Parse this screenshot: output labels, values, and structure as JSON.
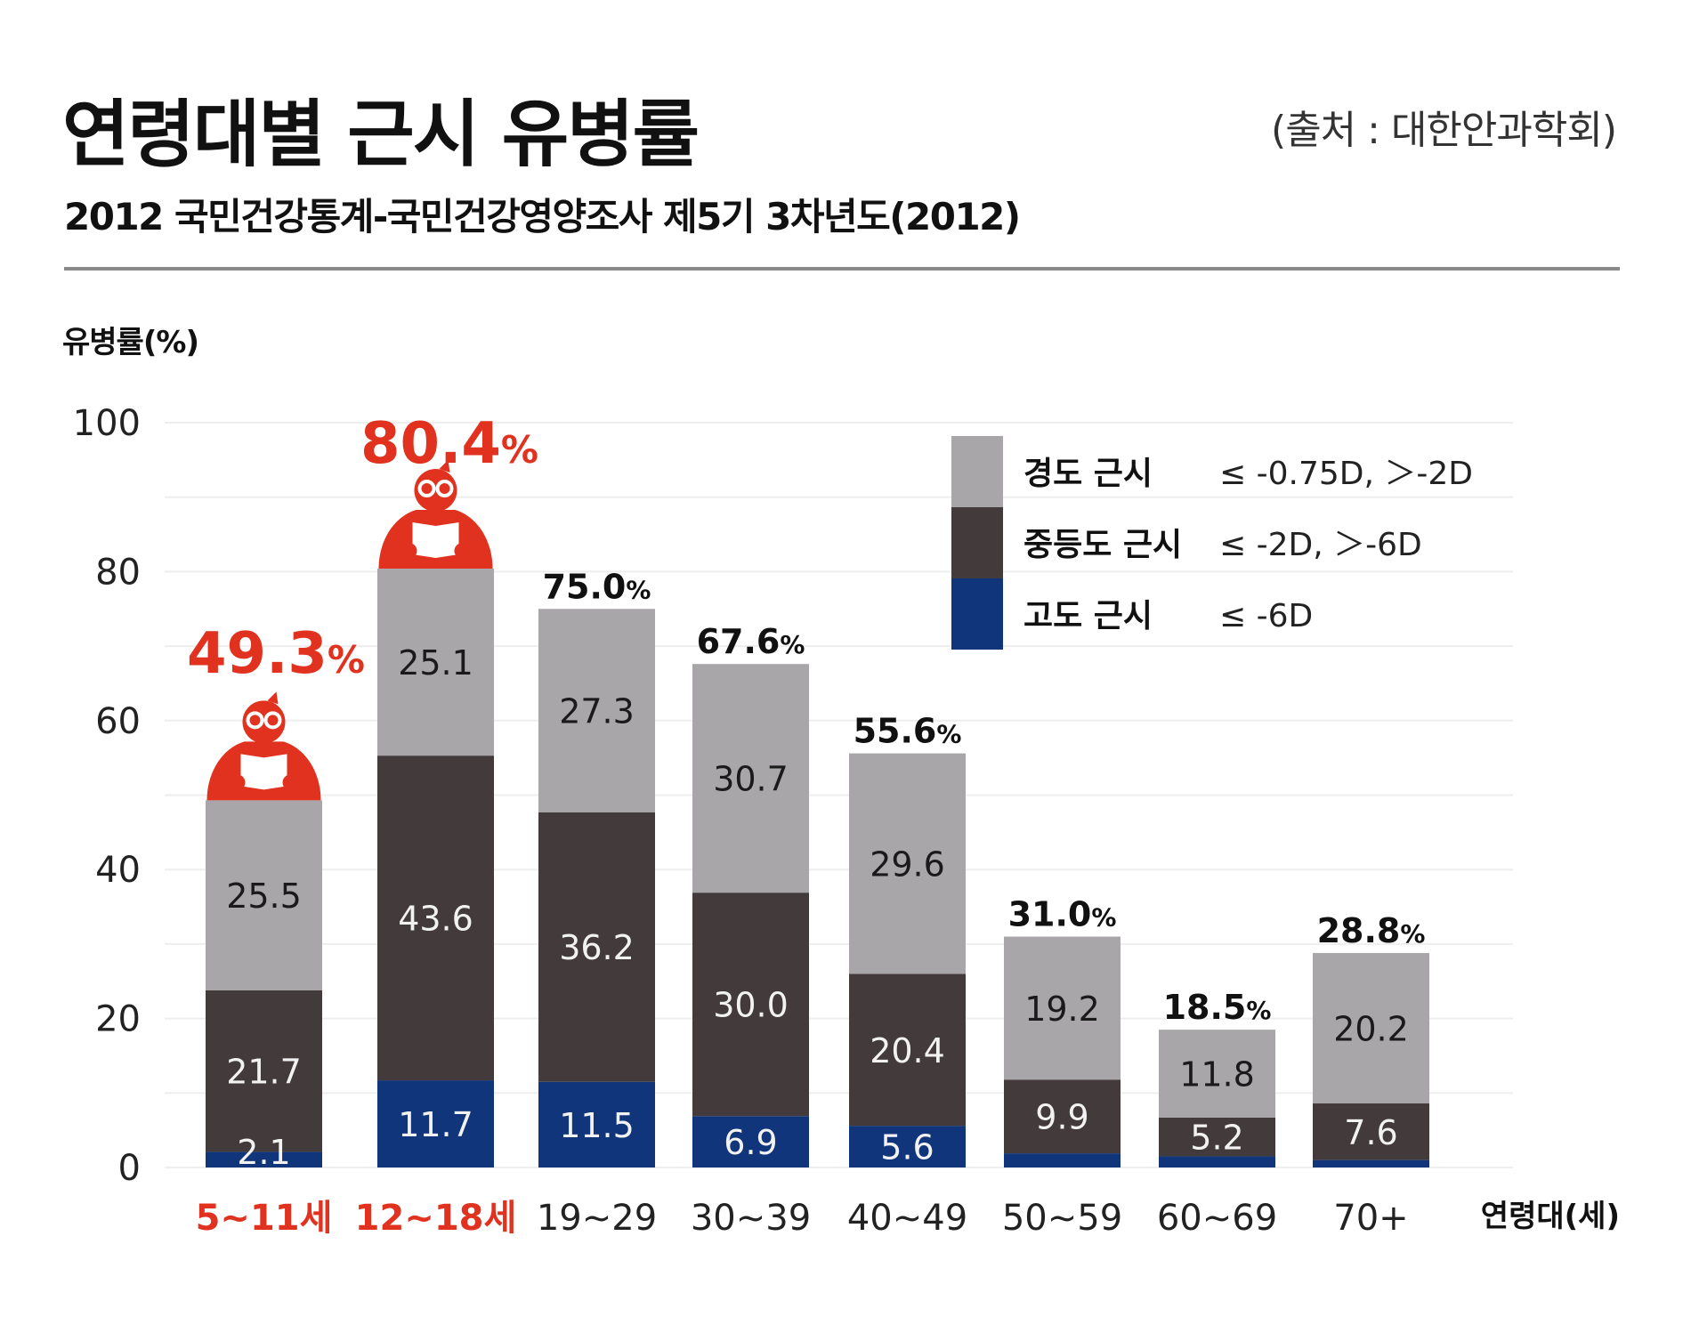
{
  "header": {
    "title": "연령대별 근시 유병률",
    "source": "(출처 : 대한안과학회)",
    "subtitle": "2012 국민건강통계-국민건강영양조사 제5기 3차년도(2012)"
  },
  "chart_data": {
    "type": "bar",
    "stacked": true,
    "title": "연령대별 근시 유병률",
    "ylabel": "유병률(%)",
    "xlabel": "연령대(세)",
    "ylim": [
      0,
      100
    ],
    "yticks": [
      "0",
      "20",
      "40",
      "60",
      "80",
      "100"
    ],
    "grid": true,
    "legend_position": "top-right",
    "categories": [
      "5~11세",
      "12~18세",
      "19~29",
      "30~39",
      "40~49",
      "50~59",
      "60~69",
      "70+"
    ],
    "highlight_categories": [
      "5~11세",
      "12~18세"
    ],
    "totals": [
      49.3,
      80.4,
      75.0,
      67.6,
      55.6,
      31.0,
      18.5,
      28.8
    ],
    "total_labels": [
      "49.3",
      "80.4",
      "75.0",
      "67.6",
      "55.6",
      "31.0",
      "18.5",
      "28.8"
    ],
    "percent_sign": "%",
    "series": [
      {
        "name": "고도 근시",
        "range": "≤ -6D",
        "color": "#11357a",
        "values": [
          2.1,
          11.7,
          11.5,
          6.9,
          5.6,
          1.9,
          1.5,
          1.0
        ],
        "labels": [
          "2.1",
          "11.7",
          "11.5",
          "6.9",
          "5.6",
          "",
          "",
          ""
        ]
      },
      {
        "name": "중등도 근시",
        "range": "≤ -2D, ＞-6D",
        "color": "#433a3c",
        "values": [
          21.7,
          43.6,
          36.2,
          30.0,
          20.4,
          9.9,
          5.2,
          7.6
        ],
        "labels": [
          "21.7",
          "43.6",
          "36.2",
          "30.0",
          "20.4",
          "9.9",
          "5.2",
          "7.6"
        ]
      },
      {
        "name": "경도 근시",
        "range": "≤ -0.75D, ＞-2D",
        "color": "#a8a6a8",
        "values": [
          25.5,
          25.1,
          27.3,
          30.7,
          29.6,
          19.2,
          11.8,
          20.2
        ],
        "labels": [
          "25.5",
          "25.1",
          "27.3",
          "30.7",
          "29.6",
          "19.2",
          "11.8",
          "20.2"
        ]
      }
    ],
    "highlight_color": "#e0321e",
    "icon": "reading-person-with-glasses-icon"
  }
}
